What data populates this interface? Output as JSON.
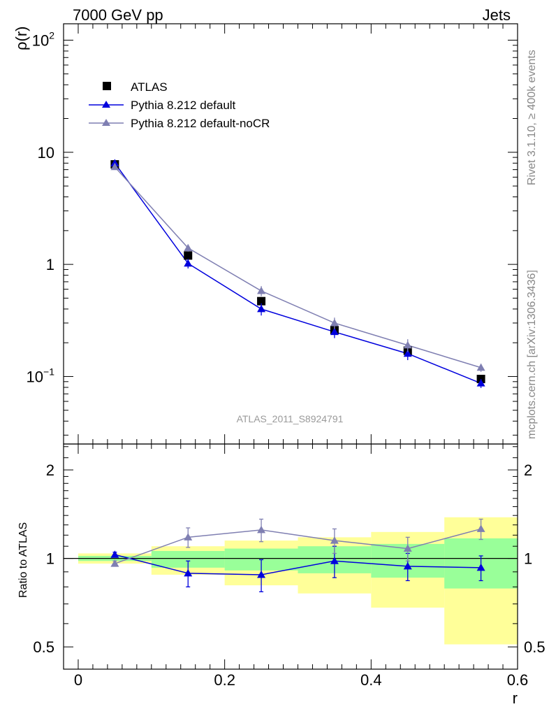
{
  "header": {
    "left": "7000 GeV pp",
    "right": "Jets"
  },
  "side_labels": {
    "rivet": "Rivet 3.1.10, ≥ 400k events",
    "mcplots": "mcplots.cern.ch [arXiv:1306.3436]"
  },
  "chart_data": [
    {
      "type": "scatter",
      "panel": "main",
      "ylabel": "ρ(r)",
      "yscale": "log",
      "ylim": [
        0.025,
        140
      ],
      "xlim": [
        -0.02,
        0.6
      ],
      "watermark": "ATLAS_2011_S8924791",
      "ytick_labels": [
        {
          "value": 100,
          "base": "10",
          "exp": "2"
        },
        {
          "value": 10,
          "base": "10",
          "exp": ""
        },
        {
          "value": 1,
          "base": "1",
          "exp": ""
        },
        {
          "value": 0.1,
          "base": "10",
          "exp": "−1"
        }
      ],
      "x": [
        0.05,
        0.15,
        0.25,
        0.35,
        0.45,
        0.55
      ],
      "series": [
        {
          "name": "ATLAS",
          "color": "#000000",
          "marker": "square",
          "line": false,
          "values": [
            7.8,
            1.2,
            0.47,
            0.26,
            0.17,
            0.095
          ],
          "errors": [
            0.3,
            0.06,
            0.03,
            0.02,
            0.015,
            0.008
          ]
        },
        {
          "name": "Pythia 8.212 default",
          "color": "#0000dd",
          "marker": "triangle",
          "line": true,
          "values": [
            8.0,
            1.02,
            0.4,
            0.25,
            0.16,
            0.087
          ],
          "errors": [
            0.3,
            0.1,
            0.05,
            0.03,
            0.02,
            0.008
          ]
        },
        {
          "name": "Pythia 8.212 default-noCR",
          "color": "#7f7fb2",
          "marker": "triangle",
          "line": true,
          "values": [
            7.4,
            1.4,
            0.58,
            0.3,
            0.19,
            0.12
          ],
          "errors": [
            0.3,
            0.1,
            0.06,
            0.035,
            0.025,
            0.01
          ]
        }
      ]
    },
    {
      "type": "scatter",
      "panel": "ratio",
      "ylabel": "Ratio to ATLAS",
      "xlabel": "r",
      "yscale": "log",
      "ylim": [
        0.42,
        2.45
      ],
      "xlim": [
        -0.02,
        0.6
      ],
      "xticks": [
        0,
        0.2,
        0.4,
        0.6
      ],
      "xtick_labels": [
        "0",
        "0.2",
        "0.4",
        "0.6"
      ],
      "yticks": [
        0.5,
        1,
        2
      ],
      "ytick_labels": [
        "0.5",
        "1",
        "2"
      ],
      "bands": [
        {
          "x0": 0.0,
          "x1": 0.1,
          "yellow": [
            0.96,
            1.04
          ],
          "green": [
            0.98,
            1.02
          ]
        },
        {
          "x0": 0.1,
          "x1": 0.2,
          "yellow": [
            0.88,
            1.1
          ],
          "green": [
            0.93,
            1.06
          ]
        },
        {
          "x0": 0.2,
          "x1": 0.3,
          "yellow": [
            0.81,
            1.15
          ],
          "green": [
            0.91,
            1.08
          ]
        },
        {
          "x0": 0.3,
          "x1": 0.4,
          "yellow": [
            0.76,
            1.18
          ],
          "green": [
            0.89,
            1.1
          ]
        },
        {
          "x0": 0.4,
          "x1": 0.5,
          "yellow": [
            0.68,
            1.23
          ],
          "green": [
            0.86,
            1.12
          ]
        },
        {
          "x0": 0.5,
          "x1": 0.6,
          "yellow": [
            0.51,
            1.38
          ],
          "green": [
            0.79,
            1.17
          ]
        }
      ],
      "x": [
        0.05,
        0.15,
        0.25,
        0.35,
        0.45,
        0.55
      ],
      "series": [
        {
          "name": "Pythia 8.212 default",
          "color": "#0000dd",
          "values": [
            1.03,
            0.89,
            0.88,
            0.98,
            0.94,
            0.93
          ],
          "errors": [
            0.02,
            0.09,
            0.11,
            0.12,
            0.1,
            0.09
          ]
        },
        {
          "name": "Pythia 8.212 default-noCR",
          "color": "#7f7fb2",
          "values": [
            0.96,
            1.18,
            1.25,
            1.15,
            1.08,
            1.26
          ],
          "errors": [
            0.02,
            0.09,
            0.11,
            0.11,
            0.1,
            0.1
          ]
        }
      ]
    }
  ]
}
